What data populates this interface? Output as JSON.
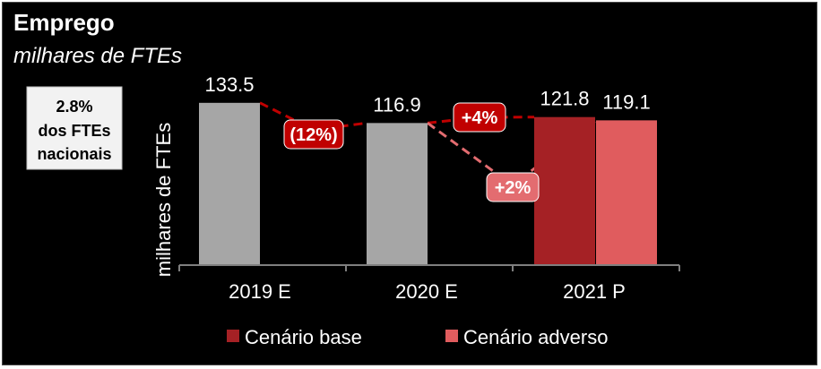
{
  "header": {
    "title": "Emprego",
    "subtitle": "milhares de FTEs"
  },
  "info_box": {
    "lines": [
      "2.8%",
      "dos FTEs",
      "nacionais"
    ]
  },
  "colors": {
    "background": "#000000",
    "historic_bar": "#a6a6a6",
    "base_bar": "#a52125",
    "adverse_bar": "#e05c5e",
    "base_line": "#c00000",
    "adverse_line": "#e36c70",
    "info_box_bg": "#f2f2f2"
  },
  "chart_data": {
    "type": "bar",
    "title": "Emprego",
    "subtitle": "milhares de FTEs",
    "ylabel": "milhares de FTEs",
    "xlabel": "",
    "ylim": [
      0,
      140
    ],
    "grid": false,
    "categories": [
      "2019 E",
      "2020 E",
      "2021 P"
    ],
    "bars": [
      {
        "category": "2019 E",
        "series": "historic",
        "value": 133.5,
        "label": "133.5"
      },
      {
        "category": "2020 E",
        "series": "historic",
        "value": 116.9,
        "label": "116.9"
      },
      {
        "category": "2021 P",
        "series": "Cenário base",
        "value": 121.8,
        "label": "121.8"
      },
      {
        "category": "2021 P",
        "series": "Cenário adverso",
        "value": 119.1,
        "label": "119.1"
      }
    ],
    "legend": {
      "position": "bottom",
      "entries": [
        "Cenário base",
        "Cenário adverso"
      ]
    },
    "annotations": [
      {
        "text": "(12%)",
        "from": "2019 E",
        "to": "2020 E",
        "scenario": "historic"
      },
      {
        "text": "+4%",
        "from": "2020 E",
        "to": "2021 P",
        "scenario": "Cenário base"
      },
      {
        "text": "+2%",
        "from": "2020 E",
        "to": "2021 P",
        "scenario": "Cenário adverso"
      }
    ]
  }
}
